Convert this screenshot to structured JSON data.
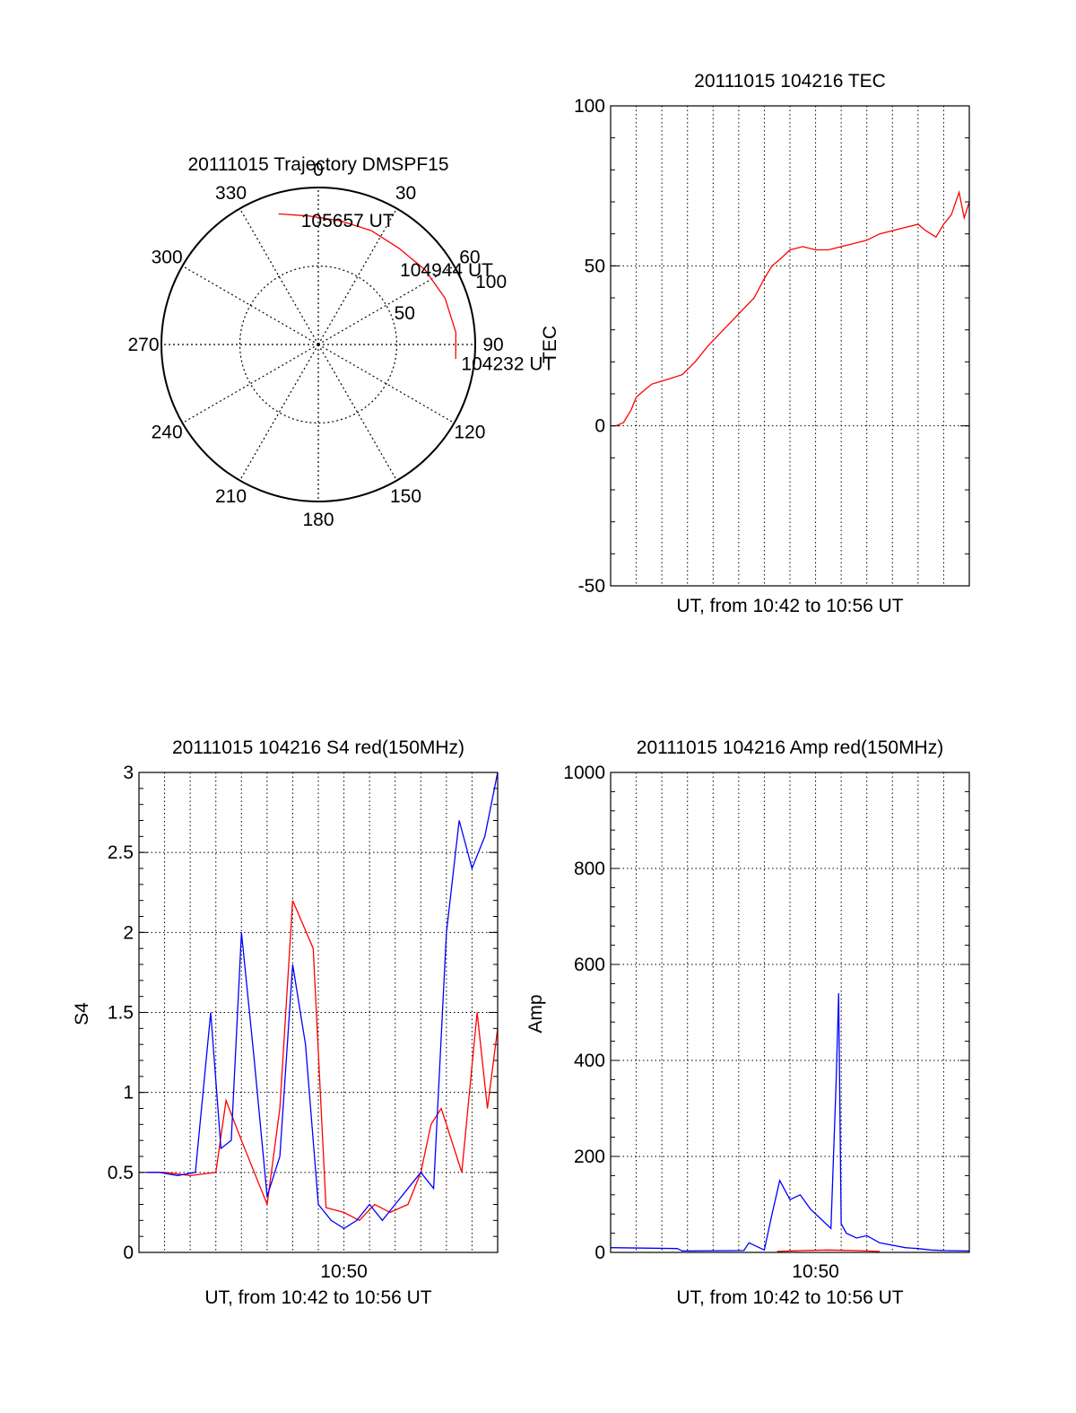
{
  "chart_data": [
    {
      "type": "polar",
      "title": "20111015 Trajectory DMSPF15",
      "azimuth_labels": [
        "0",
        "30",
        "60",
        "90",
        "120",
        "150",
        "180",
        "210",
        "240",
        "270",
        "300",
        "330"
      ],
      "radius_labels": [
        "50",
        "100"
      ],
      "radius_range": [
        0,
        100
      ],
      "grid": true,
      "annotations": [
        {
          "text": "105657 UT",
          "azimuth": 352,
          "radius": 79
        },
        {
          "text": "104944 UT",
          "azimuth": 48,
          "radius": 70
        },
        {
          "text": "104232 UT",
          "azimuth": 98,
          "radius": 92
        }
      ],
      "series": [
        {
          "color": "#ff0000",
          "points": [
            {
              "azimuth": 343,
              "radius": 87
            },
            {
              "azimuth": 356,
              "radius": 82
            },
            {
              "azimuth": 10,
              "radius": 80
            },
            {
              "azimuth": 25,
              "radius": 80
            },
            {
              "azimuth": 40,
              "radius": 80
            },
            {
              "azimuth": 55,
              "radius": 83
            },
            {
              "azimuth": 70,
              "radius": 86
            },
            {
              "azimuth": 85,
              "radius": 88
            },
            {
              "azimuth": 96,
              "radius": 88
            }
          ]
        }
      ]
    },
    {
      "type": "line",
      "title": "20111015 104216 TEC",
      "xlabel": "UT, from 10:42 to 10:56 UT",
      "ylabel": "TEC",
      "x_range": [
        "10:42",
        "10:56"
      ],
      "ylim": [
        -50,
        100
      ],
      "yticks": [
        "100",
        "50",
        "0",
        "-50"
      ],
      "grid": true,
      "series": [
        {
          "color": "#ff0000",
          "x": [
            "10:42.2",
            "10:42.5",
            "10:42.8",
            "10:43.0",
            "10:43.3",
            "10:43.6",
            "10:44.0",
            "10:44.4",
            "10:44.8",
            "10:45.3",
            "10:45.8",
            "10:46.4",
            "10:47.0",
            "10:47.6",
            "10:48.0",
            "10:48.3",
            "10:48.6",
            "10:49.0",
            "10:49.5",
            "10:50.0",
            "10:50.5",
            "10:51.0",
            "10:51.5",
            "10:52.0",
            "10:52.5",
            "10:53.0",
            "10:53.5",
            "10:54.0",
            "10:54.3",
            "10:54.7",
            "10:55.0",
            "10:55.3",
            "10:55.6",
            "10:55.8",
            "10:56.0"
          ],
          "y": [
            0,
            1,
            5,
            9,
            11,
            13,
            14,
            15,
            16,
            20,
            25,
            30,
            35,
            40,
            46,
            50,
            52,
            55,
            56,
            55,
            55,
            56,
            57,
            58,
            60,
            61,
            62,
            63,
            61,
            59,
            63,
            66,
            73,
            65,
            70
          ]
        }
      ]
    },
    {
      "type": "line",
      "title": "20111015 104216 S4 red(150MHz)",
      "xlabel": "UT, from 10:42 to 10:56 UT",
      "ylabel": "S4",
      "x_range": [
        "10:42",
        "10:56"
      ],
      "ylim": [
        0,
        3
      ],
      "yticks": [
        "3",
        "2.5",
        "2",
        "1.5",
        "1",
        "0.5",
        "0"
      ],
      "xticks": [
        "10:50"
      ],
      "grid": true,
      "series": [
        {
          "color": "#ff0000",
          "x": [
            "10:42.3",
            "10:43.0",
            "10:44.0",
            "10:45.0",
            "10:45.4",
            "10:46.0",
            "10:47.0",
            "10:47.5",
            "10:48.0",
            "10:48.8",
            "10:49.3",
            "10:50.0",
            "10:50.6",
            "10:51.2",
            "10:51.8",
            "10:52.5",
            "10:53.0",
            "10:53.4",
            "10:53.8",
            "10:54.2",
            "10:54.6",
            "10:55.2",
            "10:55.6",
            "10:56.0"
          ],
          "y": [
            0.5,
            0.5,
            0.48,
            0.5,
            0.95,
            0.7,
            0.3,
            0.9,
            2.2,
            1.9,
            0.28,
            0.25,
            0.2,
            0.3,
            0.25,
            0.3,
            0.5,
            0.8,
            0.9,
            0.7,
            0.5,
            1.5,
            0.9,
            1.4
          ]
        },
        {
          "color": "#0000ff",
          "x": [
            "10:42.3",
            "10:42.8",
            "10:43.5",
            "10:44.2",
            "10:44.8",
            "10:45.2",
            "10:45.6",
            "10:46.0",
            "10:46.5",
            "10:47.0",
            "10:47.5",
            "10:48.0",
            "10:48.5",
            "10:49.0",
            "10:49.5",
            "10:50.0",
            "10:50.5",
            "10:51.0",
            "10:51.5",
            "10:52.0",
            "10:52.5",
            "10:53.0",
            "10:53.5",
            "10:54.0",
            "10:54.5",
            "10:55.0",
            "10:55.5",
            "10:56.0"
          ],
          "y": [
            0.5,
            0.5,
            0.48,
            0.5,
            1.5,
            0.65,
            0.7,
            2.0,
            1.2,
            0.35,
            0.6,
            1.8,
            1.3,
            0.3,
            0.2,
            0.15,
            0.2,
            0.3,
            0.2,
            0.3,
            0.4,
            0.5,
            0.4,
            2.0,
            2.7,
            2.4,
            2.6,
            3.0
          ]
        }
      ]
    },
    {
      "type": "line",
      "title": "20111015 104216 Amp red(150MHz)",
      "xlabel": "UT, from 10:42 to 10:56 UT",
      "ylabel": "Amp",
      "x_range": [
        "10:42",
        "10:56"
      ],
      "ylim": [
        0,
        1000
      ],
      "yticks": [
        "1000",
        "800",
        "600",
        "400",
        "200",
        "0"
      ],
      "xticks": [
        "10:50"
      ],
      "grid": true,
      "series": [
        {
          "color": "#0000ff",
          "x": [
            "10:42.0",
            "10:44.6",
            "10:44.8",
            "10:47.2",
            "10:47.4",
            "10:48.0",
            "10:48.3",
            "10:48.6",
            "10:49.0",
            "10:49.4",
            "10:49.8",
            "10:50.2",
            "10:50.6",
            "10:50.8",
            "10:50.9",
            "10:51.0",
            "10:51.2",
            "10:51.6",
            "10:52.0",
            "10:52.5",
            "10:53.0",
            "10:53.5",
            "10:54.0",
            "10:54.5",
            "10:55.0",
            "10:56.0"
          ],
          "y": [
            10,
            8,
            3,
            4,
            20,
            5,
            80,
            150,
            110,
            120,
            90,
            70,
            50,
            350,
            540,
            60,
            40,
            30,
            35,
            20,
            15,
            10,
            8,
            5,
            4,
            3
          ]
        },
        {
          "color": "#ff0000",
          "x": [
            "10:48.5",
            "10:49.5",
            "10:50.5",
            "10:51.5",
            "10:52.5"
          ],
          "y": [
            2,
            4,
            5,
            4,
            2
          ]
        }
      ]
    }
  ]
}
